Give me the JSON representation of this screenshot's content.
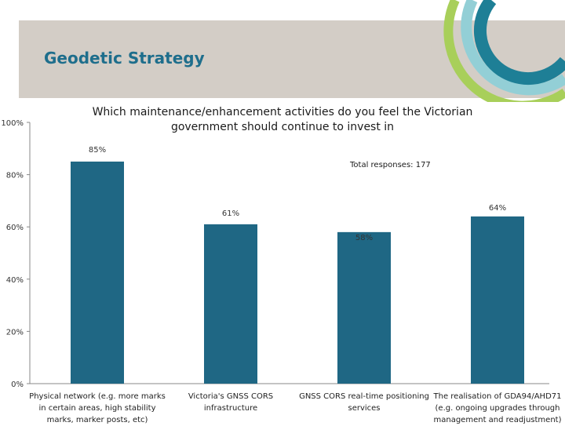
{
  "page": {
    "title": "Geodetic Strategy",
    "total_responses": "Total responses:  177"
  },
  "colors": {
    "bar": "#1f6784",
    "title": "#1e6e8c",
    "band": "#d3cdc6",
    "deco_teal": "#1e7f96",
    "deco_light": "#93cfd6",
    "deco_green": "#a8cf5a"
  },
  "chart_data": {
    "type": "bar",
    "title": "Which maintenance/enhancement activities do you feel the Victorian government should continue to invest in",
    "categories": [
      "Physical network (e.g. more marks in certain areas, high stability marks, marker posts, etc)",
      "Victoria's GNSS CORS infrastructure",
      "GNSS CORS real-time positioning services",
      "The realisation of GDA94/AHD71 (e.g. ongoing upgrades through management and readjustment)"
    ],
    "values": [
      85,
      61,
      58,
      64
    ],
    "data_labels": [
      "85%",
      "61%",
      "58%",
      "64%"
    ],
    "ylim": [
      0,
      100
    ],
    "yticks": [
      "0%",
      "20%",
      "40%",
      "60%",
      "80%",
      "100%"
    ],
    "xlabel": "",
    "ylabel": "",
    "grid": false,
    "legend": "none"
  }
}
